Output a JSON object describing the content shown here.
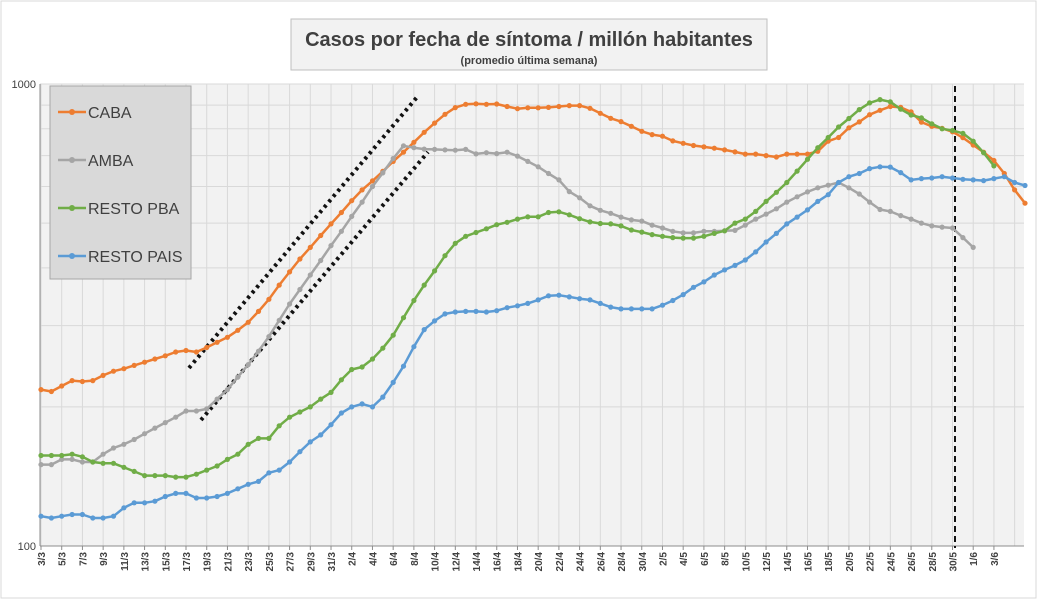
{
  "chart_data": {
    "type": "line",
    "title": "Casos por fecha de síntoma / millón habitantes",
    "subtitle": "(promedio última semana)",
    "y_scale": "log",
    "ylim": [
      100,
      1000
    ],
    "y_tick_labels": [
      "100",
      "1000"
    ],
    "x_tick_labels": [
      "3/3",
      "5/3",
      "7/3",
      "9/3",
      "11/3",
      "13/3",
      "15/3",
      "17/3",
      "19/3",
      "21/3",
      "23/3",
      "25/3",
      "27/3",
      "29/3",
      "31/3",
      "2/4",
      "4/4",
      "6/4",
      "8/4",
      "10/4",
      "12/4",
      "14/4",
      "16/4",
      "18/4",
      "20/4",
      "22/4",
      "24/4",
      "26/4",
      "28/4",
      "30/4",
      "2/5",
      "4/5",
      "6/5",
      "8/5",
      "10/5",
      "12/5",
      "14/5",
      "16/5",
      "18/5",
      "20/5",
      "22/5",
      "24/5",
      "26/5",
      "28/5",
      "30/5",
      "1/6",
      "3/6"
    ],
    "grid": true,
    "legend_position": "top-left",
    "series": [
      {
        "name": "CABA",
        "color": "#ED7D31",
        "values": [
          218,
          216,
          222,
          228,
          227,
          228,
          234,
          239,
          242,
          246,
          250,
          254,
          258,
          263,
          265,
          263,
          269,
          276,
          283,
          293,
          305,
          322,
          342,
          367,
          392,
          418,
          443,
          470,
          498,
          527,
          559,
          590,
          617,
          647,
          680,
          712,
          748,
          786,
          823,
          860,
          889,
          904,
          906,
          904,
          905,
          894,
          884,
          888,
          888,
          890,
          894,
          898,
          898,
          886,
          864,
          843,
          829,
          810,
          790,
          777,
          771,
          753,
          744,
          736,
          731,
          726,
          720,
          713,
          705,
          705,
          700,
          695,
          705,
          705,
          705,
          715,
          752,
          766,
          804,
          828,
          858,
          877,
          894,
          890,
          870,
          827,
          810,
          802,
          788,
          765,
          738,
          712,
          683,
          640,
          590,
          552
        ]
      },
      {
        "name": "AMBA",
        "color": "#A5A5A5",
        "values": [
          150,
          150,
          154,
          154,
          152,
          152,
          158,
          163,
          166,
          170,
          175,
          180,
          185,
          190,
          196,
          196,
          198,
          208,
          218,
          232,
          247,
          264,
          284,
          308,
          334,
          359,
          386,
          415,
          447,
          480,
          517,
          555,
          600,
          642,
          690,
          735,
          728,
          723,
          722,
          720,
          719,
          722,
          706,
          710,
          707,
          712,
          698,
          680,
          662,
          640,
          620,
          585,
          567,
          545,
          533,
          525,
          515,
          508,
          505,
          495,
          488,
          480,
          476,
          476,
          480,
          480,
          481,
          482,
          495,
          510,
          523,
          537,
          555,
          570,
          584,
          596,
          604,
          612,
          596,
          578,
          555,
          535,
          530,
          519,
          510,
          500,
          493,
          490,
          488,
          465,
          443
        ]
      },
      {
        "name": "RESTO PBA",
        "color": "#70AD47",
        "values": [
          157,
          157,
          157,
          158,
          156,
          152,
          151,
          151,
          148,
          145,
          142,
          142,
          142,
          141,
          141,
          143,
          146,
          149,
          154,
          158,
          166,
          171,
          171,
          182,
          190,
          195,
          200,
          208,
          215,
          229,
          241,
          244,
          254,
          268,
          286,
          312,
          340,
          367,
          394,
          425,
          452,
          468,
          477,
          486,
          496,
          502,
          510,
          516,
          516,
          527,
          529,
          521,
          511,
          503,
          499,
          498,
          493,
          483,
          478,
          472,
          468,
          465,
          464,
          464,
          468,
          475,
          481,
          500,
          510,
          530,
          557,
          583,
          612,
          648,
          687,
          728,
          766,
          807,
          842,
          880,
          910,
          925,
          915,
          882,
          857,
          845,
          820,
          800,
          793,
          782,
          752,
          710,
          665
        ]
      },
      {
        "name": "RESTO PAIS",
        "color": "#5B9BD5",
        "values": [
          116,
          115,
          116,
          117,
          117,
          115,
          115,
          116,
          121,
          124,
          124,
          125,
          128,
          130,
          130,
          127,
          127,
          128,
          130,
          133,
          136,
          138,
          144,
          146,
          152,
          160,
          168,
          174,
          183,
          194,
          200,
          203,
          200,
          210,
          226,
          245,
          270,
          294,
          307,
          318,
          321,
          322,
          322,
          321,
          323,
          328,
          331,
          335,
          341,
          348,
          349,
          346,
          343,
          341,
          335,
          329,
          326,
          326,
          326,
          326,
          332,
          340,
          350,
          363,
          373,
          386,
          396,
          405,
          416,
          433,
          455,
          475,
          498,
          515,
          534,
          557,
          576,
          612,
          630,
          640,
          656,
          662,
          661,
          643,
          620,
          624,
          626,
          630,
          626,
          622,
          620,
          618,
          624,
          630,
          612,
          603
        ]
      }
    ],
    "annotations": [
      "dotted-trend-line-1",
      "dotted-trend-line-2",
      "dashed-vertical-line-28/5"
    ]
  }
}
